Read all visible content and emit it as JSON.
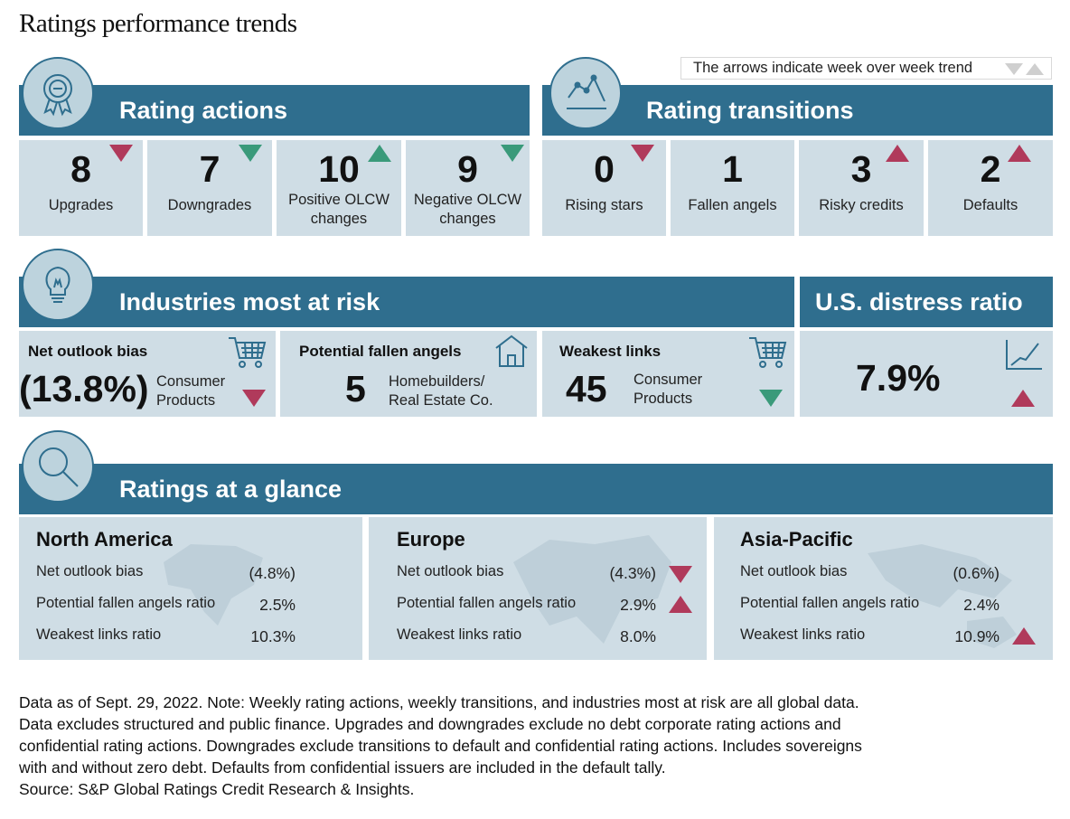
{
  "title": "Ratings performance trends",
  "legend": {
    "text": "The arrows indicate week over week trend"
  },
  "colors": {
    "header": "#2f6e8e",
    "tile": "#cfdde5",
    "up_red": "#b03a5b",
    "green": "#3a9a7a"
  },
  "rating_actions": {
    "heading": "Rating actions",
    "icon": "award-ribbon-icon",
    "items": [
      {
        "value": "8",
        "label": "Upgrades",
        "trend": "down"
      },
      {
        "value": "7",
        "label": "Downgrades",
        "trend": "down"
      },
      {
        "value": "10",
        "label_1": "Positive OLCW",
        "label_2": "changes",
        "trend": "up"
      },
      {
        "value": "9",
        "label_1": "Negative OLCW",
        "label_2": "changes",
        "trend": "down"
      }
    ]
  },
  "rating_transitions": {
    "heading": "Rating transitions",
    "icon": "line-chart-icon",
    "items": [
      {
        "value": "0",
        "label": "Rising stars",
        "trend": "down"
      },
      {
        "value": "1",
        "label": "Fallen angels",
        "trend": "none"
      },
      {
        "value": "3",
        "label": "Risky credits",
        "trend": "up"
      },
      {
        "value": "2",
        "label": "Defaults",
        "trend": "up"
      }
    ]
  },
  "industries": {
    "heading": "Industries most at risk",
    "icon": "lightbulb-icon",
    "items": [
      {
        "title": "Net outlook bias",
        "value": "(13.8%)",
        "label_1": "Consumer",
        "label_2": "Products",
        "trend": "down",
        "icon": "shopping-cart-icon"
      },
      {
        "title": "Potential fallen angels",
        "value": "5",
        "label_1": "Homebuilders/",
        "label_2": "Real Estate Co.",
        "trend": "none",
        "icon": "house-icon"
      },
      {
        "title": "Weakest links",
        "value": "45",
        "label_1": "Consumer",
        "label_2": "Products",
        "trend": "down",
        "icon": "shopping-cart-icon"
      }
    ]
  },
  "distress": {
    "heading": "U.S. distress ratio",
    "value": "7.9%",
    "trend": "up",
    "icon": "growth-chart-icon"
  },
  "glance": {
    "heading": "Ratings at a glance",
    "icon": "magnifier-icon",
    "regions": [
      {
        "name": "North America",
        "rows": [
          {
            "label": "Net outlook bias",
            "value": "(4.8%)",
            "trend": "none"
          },
          {
            "label": "Potential fallen angels ratio",
            "value": "2.5%",
            "trend": "none"
          },
          {
            "label": "Weakest links ratio",
            "value": "10.3%",
            "trend": "none"
          }
        ]
      },
      {
        "name": "Europe",
        "rows": [
          {
            "label": "Net outlook bias",
            "value": "(4.3%)",
            "trend": "down"
          },
          {
            "label": "Potential fallen angels ratio",
            "value": "2.9%",
            "trend": "up"
          },
          {
            "label": "Weakest links ratio",
            "value": "8.0%",
            "trend": "none"
          }
        ]
      },
      {
        "name": "Asia-Pacific",
        "rows": [
          {
            "label": "Net outlook bias",
            "value": "(0.6%)",
            "trend": "none"
          },
          {
            "label": "Potential fallen angels ratio",
            "value": "2.4%",
            "trend": "none"
          },
          {
            "label": "Weakest links ratio",
            "value": "10.9%",
            "trend": "up"
          }
        ]
      }
    ]
  },
  "note": {
    "line_1": "Data as of Sept. 29, 2022. Note: Weekly rating actions, weekly transitions, and industries most at risk are all global data.",
    "line_2": "Data excludes structured and public finance. Upgrades and downgrades exclude no debt corporate rating actions and",
    "line_3": "confidential rating actions. Downgrades exclude transitions to default and confidential rating actions. Includes sovereigns",
    "line_4": "with and without zero debt. Defaults from confidential issuers are included in the default tally.",
    "line_5": "Source: S&P Global Ratings Credit Research & Insights."
  },
  "chart_data": {
    "type": "table",
    "title": "Ratings performance trends",
    "rating_actions": [
      {
        "label": "Upgrades",
        "value": 8,
        "trend": "down"
      },
      {
        "label": "Downgrades",
        "value": 7,
        "trend": "down"
      },
      {
        "label": "Positive OLCW changes",
        "value": 10,
        "trend": "up"
      },
      {
        "label": "Negative OLCW changes",
        "value": 9,
        "trend": "down"
      }
    ],
    "rating_transitions": [
      {
        "label": "Rising stars",
        "value": 0,
        "trend": "down"
      },
      {
        "label": "Fallen angels",
        "value": 1,
        "trend": "none"
      },
      {
        "label": "Risky credits",
        "value": 3,
        "trend": "up"
      },
      {
        "label": "Defaults",
        "value": 2,
        "trend": "up"
      }
    ],
    "industries_most_at_risk": [
      {
        "metric": "Net outlook bias",
        "value": -13.8,
        "industry": "Consumer Products",
        "trend": "down"
      },
      {
        "metric": "Potential fallen angels",
        "value": 5,
        "industry": "Homebuilders/Real Estate Co.",
        "trend": "none"
      },
      {
        "metric": "Weakest links",
        "value": 45,
        "industry": "Consumer Products",
        "trend": "down"
      }
    ],
    "us_distress_ratio": {
      "value": 7.9,
      "trend": "up"
    },
    "ratings_at_a_glance": [
      {
        "region": "North America",
        "net_outlook_bias": -4.8,
        "potential_fallen_angels_ratio": 2.5,
        "weakest_links_ratio": 10.3
      },
      {
        "region": "Europe",
        "net_outlook_bias": -4.3,
        "potential_fallen_angels_ratio": 2.9,
        "weakest_links_ratio": 8.0
      },
      {
        "region": "Asia-Pacific",
        "net_outlook_bias": -0.6,
        "potential_fallen_angels_ratio": 2.4,
        "weakest_links_ratio": 10.9
      }
    ]
  }
}
